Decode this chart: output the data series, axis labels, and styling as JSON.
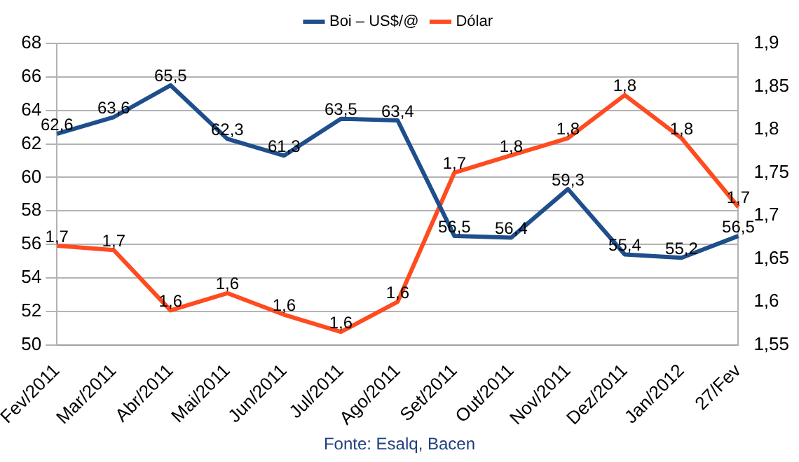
{
  "chart_data": {
    "type": "line",
    "categories": [
      "Fev/2011",
      "Mar/2011",
      "Abr/2011",
      "Mai/2011",
      "Jun/2011",
      "Jul/2011",
      "Ago/2011",
      "Set/2011",
      "Out/2011",
      "Nov/2011",
      "Dez/2011",
      "Jan/2012",
      "27/Fev"
    ],
    "series": [
      {
        "name": "Boi – US$/@",
        "color": "#1f4e8c",
        "values": [
          62.6,
          63.6,
          65.5,
          62.3,
          61.3,
          63.5,
          63.4,
          56.5,
          56.4,
          59.3,
          55.4,
          55.2,
          56.5
        ],
        "value_labels": [
          "62,6",
          "63,6",
          "65,5",
          "62,3",
          "61,3",
          "63,5",
          "63,4",
          "56,5",
          "56,4",
          "59,3",
          "55,4",
          "55,2",
          "56,5"
        ]
      },
      {
        "name": "Dólar",
        "color": "#ff4b1f",
        "axis": "y2",
        "values": [
          1.665,
          1.66,
          1.59,
          1.61,
          1.585,
          1.565,
          1.6,
          1.75,
          1.77,
          1.79,
          1.84,
          1.79,
          1.71
        ],
        "value_labels": [
          "1,7",
          "1,7",
          "1,6",
          "1,6",
          "1,6",
          "1,6",
          "1,6",
          "1,7",
          "1,8",
          "1,8",
          "1,8",
          "1,8",
          "1,7"
        ]
      }
    ],
    "ylim": [
      50,
      68
    ],
    "yticks": [
      50,
      52,
      54,
      56,
      58,
      60,
      62,
      64,
      66,
      68
    ],
    "y2lim": [
      1.55,
      1.9
    ],
    "y2ticks": [
      {
        "value": 1.55,
        "label": "1,55"
      },
      {
        "value": 1.6,
        "label": "1,6"
      },
      {
        "value": 1.65,
        "label": "1,65"
      },
      {
        "value": 1.7,
        "label": "1,7"
      },
      {
        "value": 1.75,
        "label": "1,75"
      },
      {
        "value": 1.8,
        "label": "1,8"
      },
      {
        "value": 1.85,
        "label": "1,85"
      },
      {
        "value": 1.9,
        "label": "1,9"
      }
    ],
    "grid": "y",
    "legend": "top",
    "marker": "none",
    "line_style": "solid",
    "annotations": [
      "Fonte: Esalq, Bacen"
    ]
  }
}
